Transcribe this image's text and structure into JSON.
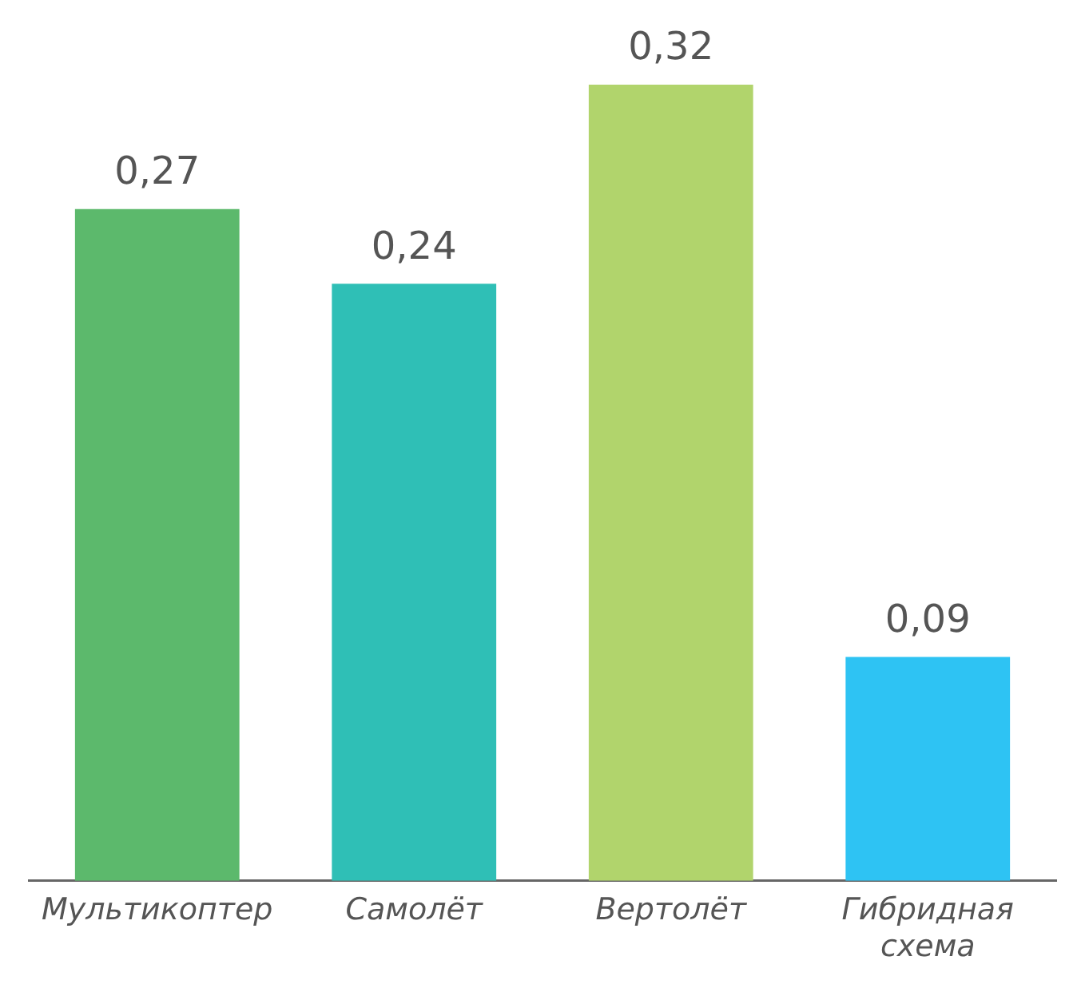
{
  "chart_data": {
    "type": "bar",
    "categories": [
      "Мультикоптер",
      "Самолёт",
      "Вертолёт",
      "Гибридная схема"
    ],
    "values": [
      0.27,
      0.24,
      0.32,
      0.09
    ],
    "colors": [
      "#5cb96c",
      "#2fbfb6",
      "#b1d46c",
      "#2ec3f3"
    ],
    "value_labels": [
      "0,27",
      "0,24",
      "0,32",
      "0,09"
    ],
    "grid": false,
    "legend": false
  }
}
